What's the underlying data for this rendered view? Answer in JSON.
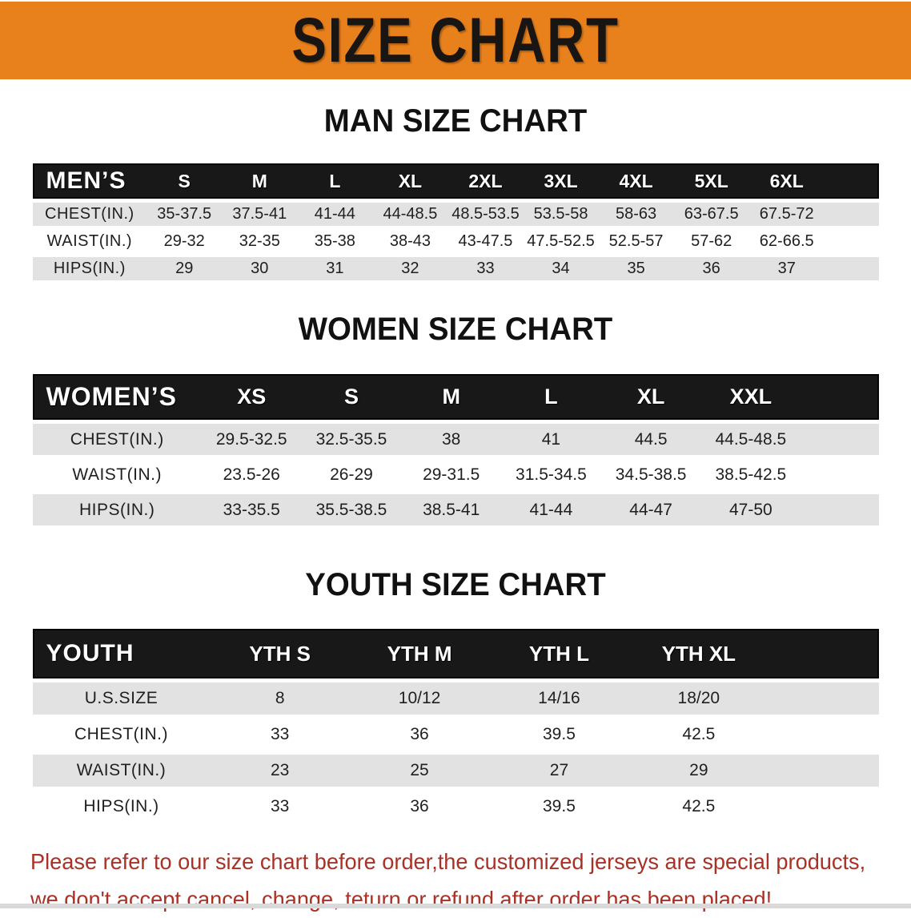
{
  "banner": {
    "title": "SIZE CHART"
  },
  "theme": {
    "banner_bg": "#e8811c",
    "header_bar_bg": "#181818",
    "stripe_bg": "#e2e2e2",
    "disclaimer_color": "#a93126",
    "heading_color": "#111111"
  },
  "sections": [
    {
      "heading": "MAN SIZE CHART",
      "label": "MEN’S",
      "columns": [
        "S",
        "M",
        "L",
        "XL",
        "2XL",
        "3XL",
        "4XL",
        "5XL",
        "6XL"
      ],
      "rows": [
        {
          "label": "CHEST(IN.)",
          "values": [
            "35-37.5",
            "37.5-41",
            "41-44",
            "44-48.5",
            "48.5-53.5",
            "53.5-58",
            "58-63",
            "63-67.5",
            "67.5-72"
          ]
        },
        {
          "label": "WAIST(IN.)",
          "values": [
            "29-32",
            "32-35",
            "35-38",
            "38-43",
            "43-47.5",
            "47.5-52.5",
            "52.5-57",
            "57-62",
            "62-66.5"
          ]
        },
        {
          "label": "HIPS(IN.)",
          "values": [
            "29",
            "30",
            "31",
            "32",
            "33",
            "34",
            "35",
            "36",
            "37"
          ]
        }
      ]
    },
    {
      "heading": "WOMEN SIZE CHART",
      "label": "WOMEN’S",
      "columns": [
        "XS",
        "S",
        "M",
        "L",
        "XL",
        "XXL"
      ],
      "rows": [
        {
          "label": "CHEST(IN.)",
          "values": [
            "29.5-32.5",
            "32.5-35.5",
            "38",
            "41",
            "44.5",
            "44.5-48.5"
          ]
        },
        {
          "label": "WAIST(IN.)",
          "values": [
            "23.5-26",
            "26-29",
            "29-31.5",
            "31.5-34.5",
            "34.5-38.5",
            "38.5-42.5"
          ]
        },
        {
          "label": "HIPS(IN.)",
          "values": [
            "33-35.5",
            "35.5-38.5",
            "38.5-41",
            "41-44",
            "44-47",
            "47-50"
          ]
        }
      ]
    },
    {
      "heading": "YOUTH SIZE CHART",
      "label": "YOUTH",
      "columns": [
        "YTH S",
        "YTH M",
        "YTH L",
        "YTH XL"
      ],
      "rows": [
        {
          "label": "U.S.SIZE",
          "values": [
            "8",
            "10/12",
            "14/16",
            "18/20"
          ]
        },
        {
          "label": "CHEST(IN.)",
          "values": [
            "33",
            "36",
            "39.5",
            "42.5"
          ]
        },
        {
          "label": "WAIST(IN.)",
          "values": [
            "23",
            "25",
            "27",
            "29"
          ]
        },
        {
          "label": "HIPS(IN.)",
          "values": [
            "33",
            "36",
            "39.5",
            "42.5"
          ]
        }
      ]
    }
  ],
  "disclaimer": {
    "line1": "Please refer to our size chart before order,the customized jerseys are special products,",
    "line2": "we don't accept cancel, change, teturn or refund after order has been placed!"
  }
}
